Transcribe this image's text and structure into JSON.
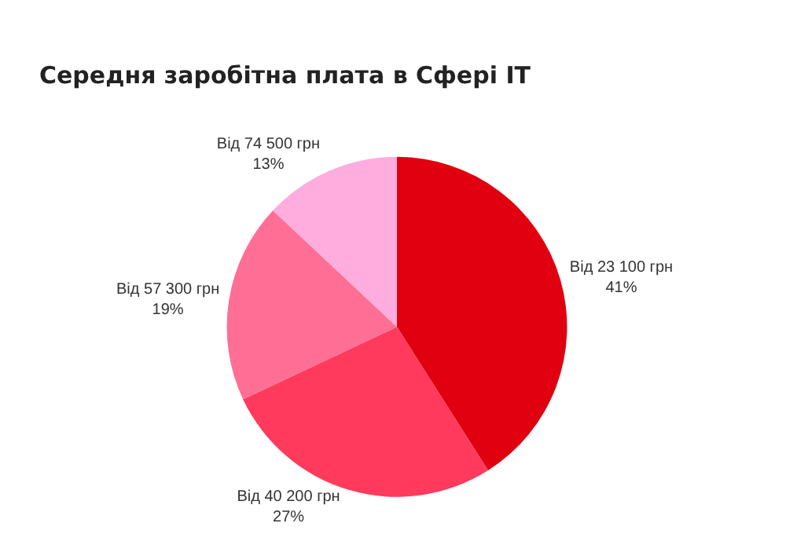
{
  "chart_data": {
    "type": "pie",
    "title": "Середня заробітна плата в Сфері IT",
    "categories": [
      "Від 23 100 грн",
      "Від 40 200 грн",
      "Від 57 300 грн",
      "Від 74 500 грн"
    ],
    "values": [
      41,
      27,
      19,
      13
    ],
    "value_labels": [
      "41%",
      "27%",
      "19%",
      "13%"
    ],
    "colors": [
      "#e0000f",
      "#ff3a5c",
      "#ff6f95",
      "#ffacdf"
    ]
  }
}
